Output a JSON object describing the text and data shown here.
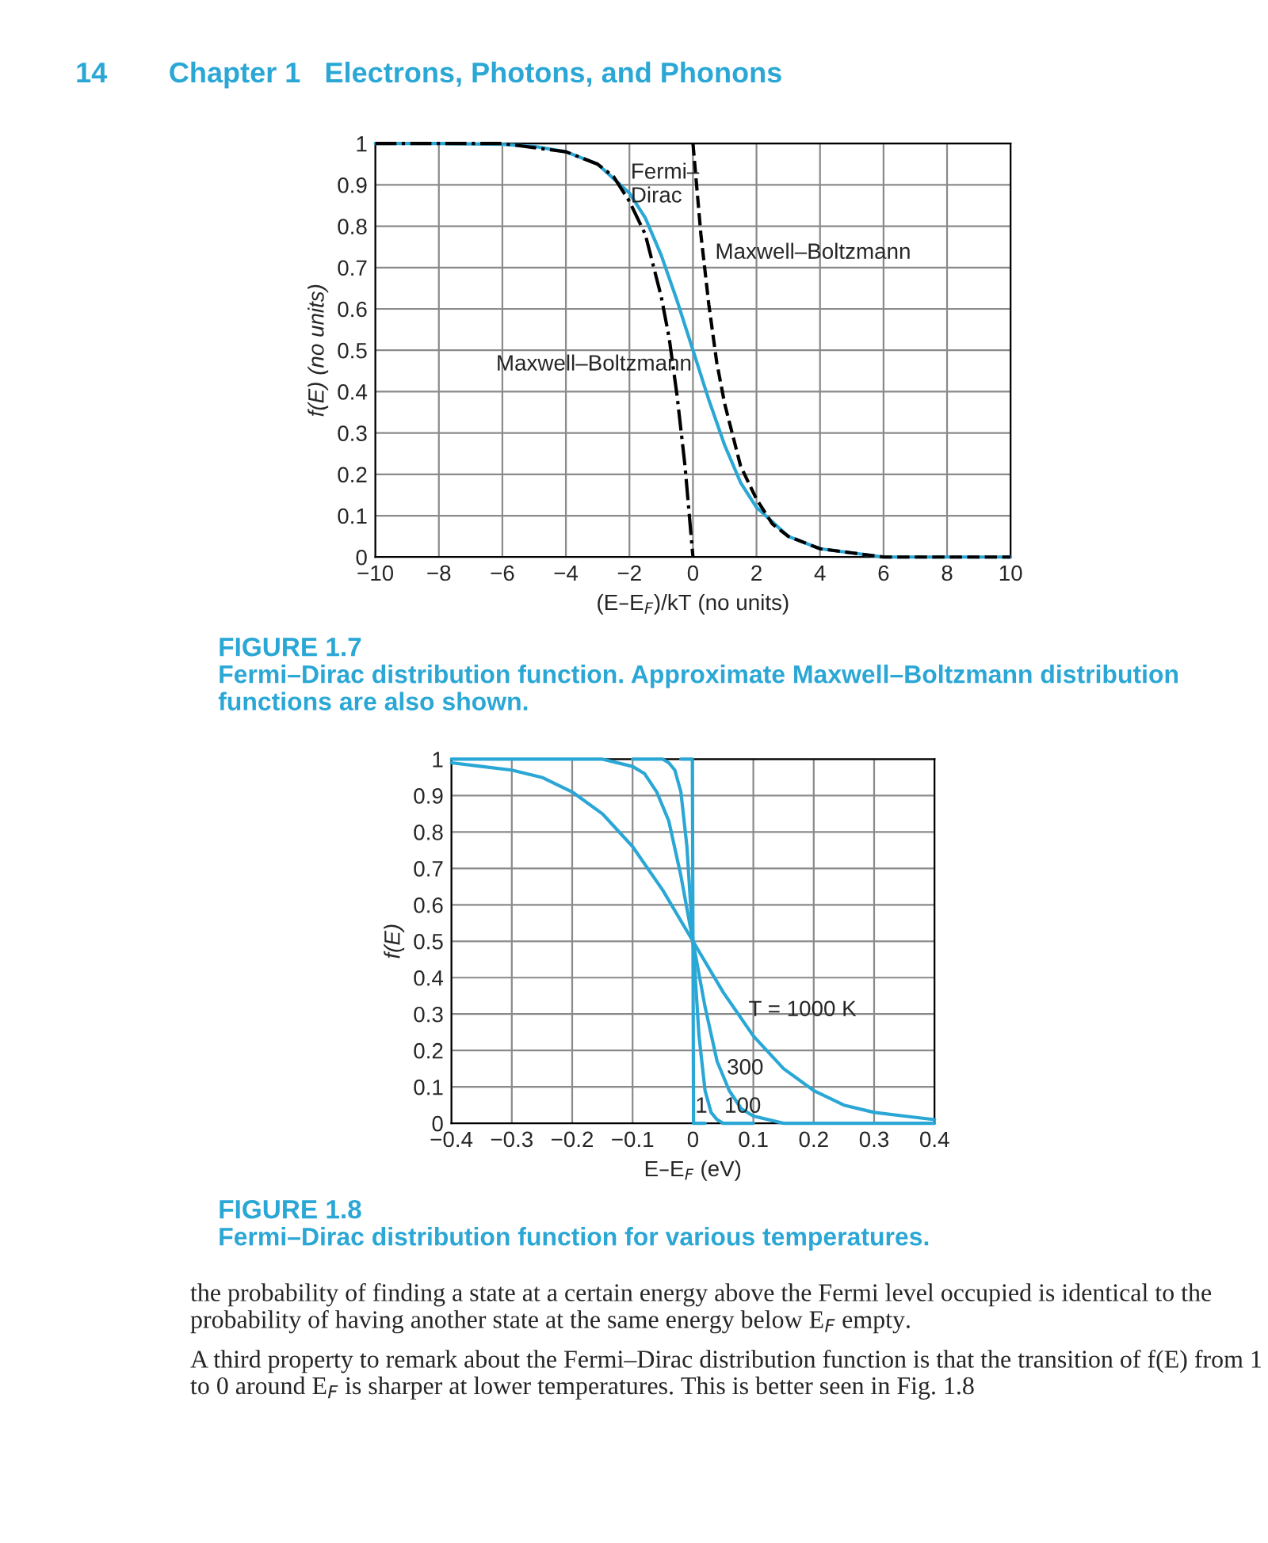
{
  "chart_data": [
    {
      "type": "line",
      "title": "FIGURE 1.7",
      "subtitle": "Fermi–Dirac distribution function. Approximate Maxwell–Boltzmann distribution functions are also shown.",
      "xlabel": "(E–E$_{F}$)/kT (no units)",
      "ylabel": "f(E) (no units)",
      "xlim": [
        -10,
        10
      ],
      "ylim": [
        0,
        1
      ],
      "xticks": [
        {
          "value": -10,
          "label": "−10"
        },
        {
          "value": -8,
          "label": "−8"
        },
        {
          "value": -6,
          "label": "−6"
        },
        {
          "value": -4,
          "label": "−4"
        },
        {
          "value": -2,
          "label": "−2"
        },
        0,
        2,
        4,
        6,
        8,
        10
      ],
      "yticks": [
        0,
        0.1,
        0.2,
        0.3,
        0.4,
        0.5,
        0.6,
        0.7,
        0.8,
        0.9,
        1
      ],
      "grid": true,
      "marker": "none",
      "series": [
        {
          "color": "#2aa7d5",
          "line_style": "solid",
          "x": [
            -10,
            -8,
            -6,
            -5,
            -4,
            -3,
            -2,
            -1.5,
            -1,
            -0.5,
            0,
            0.5,
            1,
            1.5,
            2,
            3,
            4,
            5,
            6,
            8,
            10
          ],
          "values": [
            1,
            1,
            0.998,
            0.993,
            0.98,
            0.95,
            0.88,
            0.82,
            0.73,
            0.62,
            0.5,
            0.38,
            0.27,
            0.18,
            0.12,
            0.05,
            0.02,
            0.01,
            0,
            0,
            0
          ]
        },
        {
          "color": "#000000",
          "line_style": "dashed",
          "x": [
            0,
            0.25,
            0.5,
            0.75,
            1,
            1.5,
            2,
            2.5,
            3,
            4,
            5,
            6,
            8,
            10
          ],
          "values": [
            1,
            0.78,
            0.61,
            0.47,
            0.37,
            0.22,
            0.14,
            0.08,
            0.05,
            0.02,
            0.01,
            0,
            0,
            0
          ]
        },
        {
          "color": "#000000",
          "line_style": "dashdot",
          "x": [
            -10,
            -8,
            -6,
            -5,
            -4,
            -3,
            -2.5,
            -2,
            -1.5,
            -1,
            -0.75,
            -0.5,
            -0.25,
            0
          ],
          "values": [
            1,
            1,
            1,
            0.99,
            0.98,
            0.95,
            0.92,
            0.86,
            0.78,
            0.63,
            0.53,
            0.39,
            0.22,
            0
          ]
        }
      ],
      "annotations": [
        "14",
        "Chapter 1   Electrons, Photons, and Phonons",
        "Fermi–\nDirac",
        "Maxwell–Boltzmann",
        "Maxwell–Boltzmann"
      ]
    },
    {
      "type": "line",
      "title": "FIGURE 1.8",
      "subtitle": "Fermi–Dirac distribution function for various temperatures.",
      "xlabel": "E–E$_{F}$ (eV)",
      "ylabel": "f(E)",
      "xlim": [
        -0.4,
        0.4
      ],
      "ylim": [
        0,
        1
      ],
      "xticks": [
        {
          "value": -0.4,
          "label": "−0.4"
        },
        {
          "value": -0.3,
          "label": "−0.3"
        },
        {
          "value": -0.2,
          "label": "−0.2"
        },
        {
          "value": -0.1,
          "label": "−0.1"
        },
        0,
        0.1,
        0.2,
        0.3,
        0.4
      ],
      "yticks": [
        0,
        0.1,
        0.2,
        0.3,
        0.4,
        0.5,
        0.6,
        0.7,
        0.8,
        0.9,
        1
      ],
      "grid": true,
      "marker": "none",
      "series": [
        {
          "color": "#2aa7d5",
          "line_style": "solid",
          "x": [
            -0.4,
            -0.35,
            -0.3,
            -0.25,
            -0.2,
            -0.15,
            -0.1,
            -0.05,
            0,
            0.05,
            0.1,
            0.15,
            0.2,
            0.25,
            0.3,
            0.35,
            0.4
          ],
          "values": [
            0.99,
            0.98,
            0.97,
            0.95,
            0.91,
            0.85,
            0.76,
            0.64,
            0.5,
            0.36,
            0.24,
            0.15,
            0.09,
            0.05,
            0.03,
            0.02,
            0.01
          ]
        },
        {
          "color": "#2aa7d5",
          "line_style": "solid",
          "x": [
            -0.4,
            -0.2,
            -0.15,
            -0.1,
            -0.08,
            -0.06,
            -0.04,
            -0.02,
            0,
            0.02,
            0.04,
            0.06,
            0.08,
            0.1,
            0.15,
            0.2,
            0.4
          ],
          "values": [
            1,
            1,
            1,
            0.98,
            0.96,
            0.91,
            0.83,
            0.68,
            0.5,
            0.32,
            0.17,
            0.09,
            0.04,
            0.02,
            0,
            0,
            0
          ]
        },
        {
          "color": "#2aa7d5",
          "line_style": "solid",
          "x": [
            -0.1,
            -0.05,
            -0.04,
            -0.03,
            -0.02,
            -0.01,
            0,
            0.01,
            0.02,
            0.03,
            0.04,
            0.05,
            0.1
          ],
          "values": [
            1,
            1,
            0.99,
            0.97,
            0.91,
            0.76,
            0.5,
            0.24,
            0.09,
            0.03,
            0.01,
            0,
            0
          ]
        },
        {
          "color": "#2aa7d5",
          "line_style": "solid",
          "x": [
            -0.02,
            -0.001,
            0,
            0.001,
            0.02
          ],
          "values": [
            1,
            1,
            0.5,
            0,
            0
          ]
        }
      ],
      "annotations": [
        "T = 1000 K",
        "300",
        "100",
        "1",
        "the probability of finding a state at a certain energy above the Fermi level occupied is identical to the probability of having another state at the same energy below E$_{F}$ empty.",
        "A third property to remark about the Fermi–Dirac distribution function is that the transition of f(E) from 1 to 0 around E$_{F}$ is sharper at lower temperatures. This is better seen in Fig. 1.8"
      ]
    }
  ]
}
